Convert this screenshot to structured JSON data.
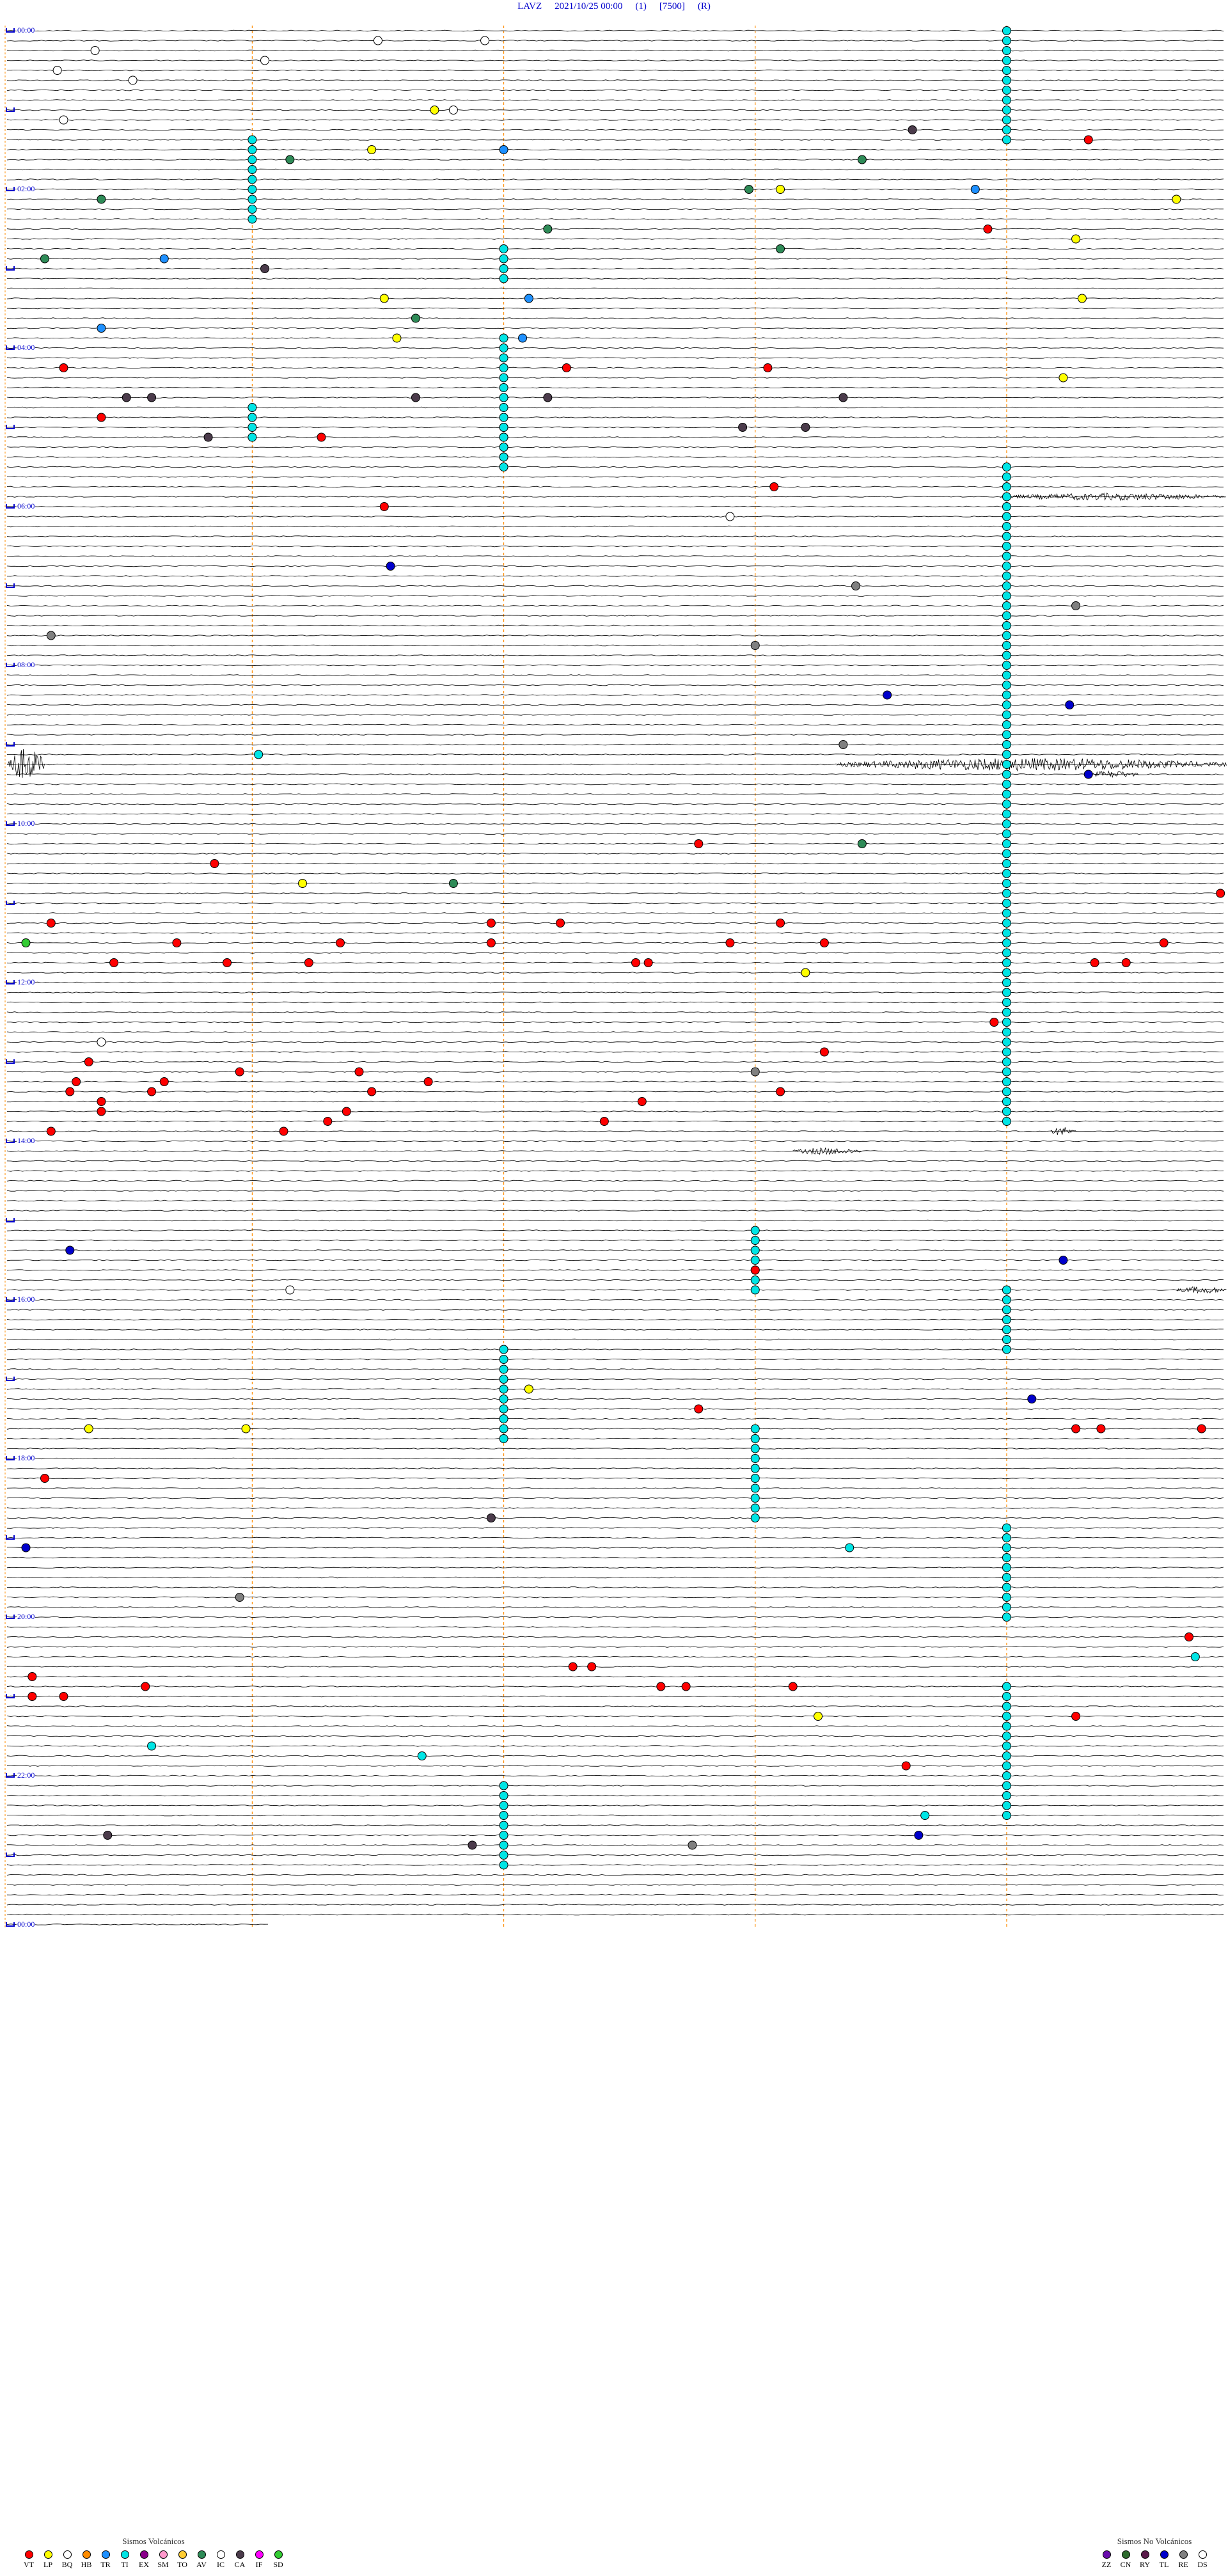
{
  "header": {
    "station": "LAVZ",
    "datetime": "2021/10/25 00:00",
    "component": "(1)",
    "gain": "[7500]",
    "mode": "(R)"
  },
  "hour_labels": [
    "00:00",
    "02:00",
    "04:00",
    "06:00",
    "08:00",
    "10:00",
    "12:00",
    "14:00",
    "16:00",
    "18:00",
    "20:00",
    "22:00",
    "00:00"
  ],
  "legend_volcanic": {
    "title": "Sismos Volcánicos",
    "items": [
      {
        "code": "VT",
        "color": "#ff0000"
      },
      {
        "code": "LP",
        "color": "#ffff00"
      },
      {
        "code": "BQ",
        "color": "#ffffff"
      },
      {
        "code": "HB",
        "color": "#ff8c00"
      },
      {
        "code": "TR",
        "color": "#1e90ff"
      },
      {
        "code": "TI",
        "color": "#00e5e5"
      },
      {
        "code": "EX",
        "color": "#8b008b"
      },
      {
        "code": "SM",
        "color": "#ff99cc"
      },
      {
        "code": "TO",
        "color": "#ffcc33"
      },
      {
        "code": "AV",
        "color": "#2e8b57"
      },
      {
        "code": "IC",
        "color": "#ffffff"
      },
      {
        "code": "CA",
        "color": "#4b3b4b"
      },
      {
        "code": "IF",
        "color": "#ff00ff"
      },
      {
        "code": "SD",
        "color": "#33cc33"
      }
    ]
  },
  "legend_nonvolcanic": {
    "title": "Sismos No Volcánicos",
    "items": [
      {
        "code": "ZZ",
        "color": "#6a0dad"
      },
      {
        "code": "CN",
        "color": "#2e6b2e"
      },
      {
        "code": "RY",
        "color": "#5a1a4a"
      },
      {
        "code": "TL",
        "color": "#0000cc"
      },
      {
        "code": "RE",
        "color": "#808080"
      },
      {
        "code": "DS",
        "color": "#ffffff"
      }
    ]
  },
  "colors": {
    "trace": "#000000",
    "minute_grid": "#ff8c00",
    "label": "#0000cc",
    "hour_mark": "#0000cc"
  },
  "events": [
    {
      "code": "BQ",
      "row": 1,
      "minute": 29.5
    },
    {
      "code": "BQ",
      "row": 1,
      "minute": 38.0
    },
    {
      "code": "BQ",
      "row": 2,
      "minute": 7.0
    },
    {
      "code": "BQ",
      "row": 3,
      "minute": 20.5
    },
    {
      "code": "BQ",
      "row": 4,
      "minute": 4.0
    },
    {
      "code": "BQ",
      "row": 5,
      "minute": 10.0
    },
    {
      "code": "LP",
      "row": 8,
      "minute": 34.0
    },
    {
      "code": "BQ",
      "row": 8,
      "minute": 35.5
    },
    {
      "code": "BQ",
      "row": 9,
      "minute": 4.5
    },
    {
      "code": "CA",
      "row": 10,
      "minute": 72.0
    },
    {
      "code": "VT",
      "row": 11,
      "minute": 86.0
    },
    {
      "code": "TR",
      "row": 12,
      "minute": 39.5
    },
    {
      "code": "LP",
      "row": 12,
      "minute": 29.0
    },
    {
      "code": "AV",
      "row": 13,
      "minute": 22.5
    },
    {
      "code": "AV",
      "row": 13,
      "minute": 68.0
    },
    {
      "code": "AV",
      "row": 16,
      "minute": 59.0
    },
    {
      "code": "LP",
      "row": 16,
      "minute": 61.5
    },
    {
      "code": "TR",
      "row": 16,
      "minute": 77.0
    },
    {
      "code": "LP",
      "row": 17,
      "minute": 93.0
    },
    {
      "code": "AV",
      "row": 17,
      "minute": 7.5
    },
    {
      "code": "VT",
      "row": 20,
      "minute": 78.0
    },
    {
      "code": "AV",
      "row": 20,
      "minute": 43.0
    },
    {
      "code": "LP",
      "row": 21,
      "minute": 85.0
    },
    {
      "code": "AV",
      "row": 22,
      "minute": 61.5
    },
    {
      "code": "AV",
      "row": 23,
      "minute": 3.0
    },
    {
      "code": "TR",
      "row": 23,
      "minute": 12.5
    },
    {
      "code": "CA",
      "row": 24,
      "minute": 20.5
    },
    {
      "code": "LP",
      "row": 27,
      "minute": 30.0
    },
    {
      "code": "TR",
      "row": 27,
      "minute": 41.5
    },
    {
      "code": "LP",
      "row": 27,
      "minute": 85.5
    },
    {
      "code": "AV",
      "row": 29,
      "minute": 32.5
    },
    {
      "code": "TR",
      "row": 30,
      "minute": 7.5
    },
    {
      "code": "LP",
      "row": 31,
      "minute": 31.0
    },
    {
      "code": "TR",
      "row": 31,
      "minute": 41.0
    },
    {
      "code": "VT",
      "row": 34,
      "minute": 4.5
    },
    {
      "code": "VT",
      "row": 34,
      "minute": 44.5
    },
    {
      "code": "VT",
      "row": 34,
      "minute": 60.5
    },
    {
      "code": "LP",
      "row": 35,
      "minute": 84.0
    },
    {
      "code": "CA",
      "row": 37,
      "minute": 9.5
    },
    {
      "code": "CA",
      "row": 37,
      "minute": 11.5
    },
    {
      "code": "CA",
      "row": 37,
      "minute": 32.5
    },
    {
      "code": "CA",
      "row": 37,
      "minute": 43.0
    },
    {
      "code": "CA",
      "row": 37,
      "minute": 66.5
    },
    {
      "code": "VT",
      "row": 39,
      "minute": 7.5
    },
    {
      "code": "CA",
      "row": 40,
      "minute": 58.5
    },
    {
      "code": "CA",
      "row": 40,
      "minute": 63.5
    },
    {
      "code": "VT",
      "row": 41,
      "minute": 25.0
    },
    {
      "code": "CA",
      "row": 41,
      "minute": 16.0
    },
    {
      "code": "VT",
      "row": 46,
      "minute": 61.0
    },
    {
      "code": "VT",
      "row": 48,
      "minute": 30.0
    },
    {
      "code": "BQ",
      "row": 49,
      "minute": 57.5
    },
    {
      "code": "TL",
      "row": 54,
      "minute": 30.5
    },
    {
      "code": "RE",
      "row": 56,
      "minute": 67.5
    },
    {
      "code": "RE",
      "row": 58,
      "minute": 85.0
    },
    {
      "code": "RE",
      "row": 61,
      "minute": 3.5
    },
    {
      "code": "RE",
      "row": 62,
      "minute": 59.5
    },
    {
      "code": "TL",
      "row": 67,
      "minute": 70.0
    },
    {
      "code": "TL",
      "row": 68,
      "minute": 84.5
    },
    {
      "code": "RE",
      "row": 72,
      "minute": 66.5
    },
    {
      "code": "TI",
      "row": 73,
      "minute": 20.0
    },
    {
      "code": "TL",
      "row": 75,
      "minute": 86.0
    },
    {
      "code": "VT",
      "row": 82,
      "minute": 55.0
    },
    {
      "code": "AV",
      "row": 82,
      "minute": 68.0
    },
    {
      "code": "VT",
      "row": 84,
      "minute": 16.5
    },
    {
      "code": "LP",
      "row": 86,
      "minute": 23.5
    },
    {
      "code": "AV",
      "row": 86,
      "minute": 35.5
    },
    {
      "code": "VT",
      "row": 87,
      "minute": 96.5
    },
    {
      "code": "VT",
      "row": 90,
      "minute": 3.5
    },
    {
      "code": "VT",
      "row": 90,
      "minute": 38.5
    },
    {
      "code": "VT",
      "row": 90,
      "minute": 44.0
    },
    {
      "code": "VT",
      "row": 90,
      "minute": 61.5
    },
    {
      "code": "SD",
      "row": 92,
      "minute": 1.5
    },
    {
      "code": "VT",
      "row": 92,
      "minute": 13.5
    },
    {
      "code": "VT",
      "row": 92,
      "minute": 26.5
    },
    {
      "code": "VT",
      "row": 92,
      "minute": 38.5
    },
    {
      "code": "VT",
      "row": 92,
      "minute": 57.5
    },
    {
      "code": "VT",
      "row": 92,
      "minute": 65.0
    },
    {
      "code": "VT",
      "row": 92,
      "minute": 92.0
    },
    {
      "code": "VT",
      "row": 94,
      "minute": 8.5
    },
    {
      "code": "VT",
      "row": 94,
      "minute": 17.5
    },
    {
      "code": "VT",
      "row": 94,
      "minute": 24.0
    },
    {
      "code": "VT",
      "row": 94,
      "minute": 50.0
    },
    {
      "code": "VT",
      "row": 94,
      "minute": 51.0
    },
    {
      "code": "VT",
      "row": 94,
      "minute": 86.5
    },
    {
      "code": "VT",
      "row": 94,
      "minute": 89.0
    },
    {
      "code": "LP",
      "row": 95,
      "minute": 63.5
    },
    {
      "code": "VT",
      "row": 100,
      "minute": 78.5
    },
    {
      "code": "BQ",
      "row": 102,
      "minute": 7.5
    },
    {
      "code": "VT",
      "row": 103,
      "minute": 65.0
    },
    {
      "code": "VT",
      "row": 104,
      "minute": 6.5
    },
    {
      "code": "VT",
      "row": 105,
      "minute": 18.5
    },
    {
      "code": "VT",
      "row": 105,
      "minute": 28.0
    },
    {
      "code": "RE",
      "row": 105,
      "minute": 59.5
    },
    {
      "code": "VT",
      "row": 106,
      "minute": 5.5
    },
    {
      "code": "VT",
      "row": 106,
      "minute": 12.5
    },
    {
      "code": "VT",
      "row": 106,
      "minute": 33.5
    },
    {
      "code": "VT",
      "row": 107,
      "minute": 5.0
    },
    {
      "code": "VT",
      "row": 107,
      "minute": 11.5
    },
    {
      "code": "VT",
      "row": 107,
      "minute": 29.0
    },
    {
      "code": "VT",
      "row": 107,
      "minute": 61.5
    },
    {
      "code": "VT",
      "row": 108,
      "minute": 7.5
    },
    {
      "code": "VT",
      "row": 108,
      "minute": 50.5
    },
    {
      "code": "VT",
      "row": 109,
      "minute": 7.5
    },
    {
      "code": "VT",
      "row": 109,
      "minute": 27.0
    },
    {
      "code": "VT",
      "row": 110,
      "minute": 25.5
    },
    {
      "code": "VT",
      "row": 110,
      "minute": 47.5
    },
    {
      "code": "VT",
      "row": 111,
      "minute": 3.5
    },
    {
      "code": "VT",
      "row": 111,
      "minute": 22.0
    },
    {
      "code": "TL",
      "row": 123,
      "minute": 5.0
    },
    {
      "code": "TL",
      "row": 124,
      "minute": 84.0
    },
    {
      "code": "VT",
      "row": 125,
      "minute": 59.5
    },
    {
      "code": "BQ",
      "row": 127,
      "minute": 22.5
    },
    {
      "code": "LP",
      "row": 137,
      "minute": 41.5
    },
    {
      "code": "TL",
      "row": 138,
      "minute": 81.5
    },
    {
      "code": "VT",
      "row": 139,
      "minute": 55.0
    },
    {
      "code": "LP",
      "row": 141,
      "minute": 6.5
    },
    {
      "code": "LP",
      "row": 141,
      "minute": 19.0
    },
    {
      "code": "VT",
      "row": 141,
      "minute": 85.0
    },
    {
      "code": "VT",
      "row": 141,
      "minute": 87.0
    },
    {
      "code": "VT",
      "row": 141,
      "minute": 95.0
    },
    {
      "code": "VT",
      "row": 146,
      "minute": 3.0
    },
    {
      "code": "CA",
      "row": 150,
      "minute": 38.5
    },
    {
      "code": "TL",
      "row": 153,
      "minute": 1.5
    },
    {
      "code": "TI",
      "row": 153,
      "minute": 67.0
    },
    {
      "code": "RE",
      "row": 158,
      "minute": 18.5
    },
    {
      "code": "VT",
      "row": 162,
      "minute": 94.0
    },
    {
      "code": "TI",
      "row": 164,
      "minute": 94.5
    },
    {
      "code": "VT",
      "row": 165,
      "minute": 45.0
    },
    {
      "code": "VT",
      "row": 165,
      "minute": 46.5
    },
    {
      "code": "VT",
      "row": 166,
      "minute": 2.0
    },
    {
      "code": "VT",
      "row": 167,
      "minute": 11.0
    },
    {
      "code": "VT",
      "row": 167,
      "minute": 52.0
    },
    {
      "code": "VT",
      "row": 167,
      "minute": 54.0
    },
    {
      "code": "VT",
      "row": 167,
      "minute": 62.5
    },
    {
      "code": "VT",
      "row": 168,
      "minute": 2.0
    },
    {
      "code": "VT",
      "row": 168,
      "minute": 4.5
    },
    {
      "code": "LP",
      "row": 170,
      "minute": 64.5
    },
    {
      "code": "VT",
      "row": 170,
      "minute": 85.0
    },
    {
      "code": "TI",
      "row": 173,
      "minute": 11.5
    },
    {
      "code": "TI",
      "row": 174,
      "minute": 33.0
    },
    {
      "code": "VT",
      "row": 175,
      "minute": 71.5
    },
    {
      "code": "TI",
      "row": 180,
      "minute": 73.0
    },
    {
      "code": "CA",
      "row": 182,
      "minute": 8.0
    },
    {
      "code": "TL",
      "row": 182,
      "minute": 72.5
    },
    {
      "code": "RE",
      "row": 183,
      "minute": 54.5
    },
    {
      "code": "CA",
      "row": 183,
      "minute": 37.0
    }
  ],
  "ti_columns": [
    {
      "minute": 79.5,
      "row_start": 0,
      "row_end": 11
    },
    {
      "minute": 19.5,
      "row_start": 11,
      "row_end": 19
    },
    {
      "minute": 39.5,
      "row_start": 22,
      "row_end": 25
    },
    {
      "minute": 39.5,
      "row_start": 31,
      "row_end": 43
    },
    {
      "minute": 19.5,
      "row_start": 38,
      "row_end": 41
    },
    {
      "minute": 39.5,
      "row_start": 40,
      "row_end": 44
    },
    {
      "minute": 79.5,
      "row_start": 44,
      "row_end": 110
    },
    {
      "minute": 59.5,
      "row_start": 121,
      "row_end": 127
    },
    {
      "minute": 79.5,
      "row_start": 127,
      "row_end": 133
    },
    {
      "minute": 39.5,
      "row_start": 133,
      "row_end": 142
    },
    {
      "minute": 59.5,
      "row_start": 141,
      "row_end": 150
    },
    {
      "minute": 79.5,
      "row_start": 151,
      "row_end": 160
    },
    {
      "minute": 79.5,
      "row_start": 167,
      "row_end": 180
    },
    {
      "minute": 39.5,
      "row_start": 177,
      "row_end": 185
    }
  ],
  "bursts": [
    {
      "row": 47,
      "minute_start": 79.0,
      "minute_end": 97.0,
      "amp": 4
    },
    {
      "row": 74,
      "minute_start": 0.0,
      "minute_end": 3.0,
      "amp": 18
    },
    {
      "row": 74,
      "minute_start": 66.0,
      "minute_end": 97.0,
      "amp": 7
    },
    {
      "row": 75,
      "minute_start": 86.0,
      "minute_end": 90.0,
      "amp": 4
    },
    {
      "row": 113,
      "minute_start": 62.5,
      "minute_end": 68.0,
      "amp": 4
    },
    {
      "row": 111,
      "minute_start": 83.0,
      "minute_end": 85.0,
      "amp": 5
    },
    {
      "row": 127,
      "minute_start": 93.0,
      "minute_end": 97.0,
      "amp": 4
    }
  ]
}
